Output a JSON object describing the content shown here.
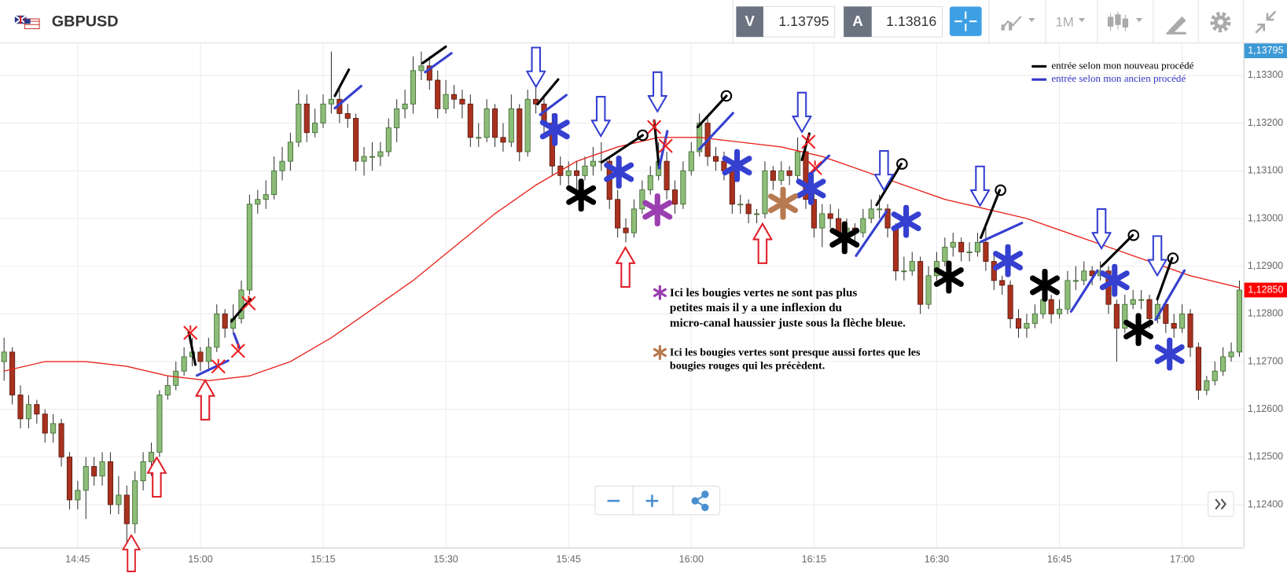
{
  "toolbar": {
    "symbol": "GBPUSD",
    "bid_label": "V",
    "bid": "1.13795",
    "ask_label": "A",
    "ask": "1.13816",
    "timeframe": "1M"
  },
  "chart_data": {
    "type": "candlestick",
    "up_color": "#8dbd78",
    "down_color": "#a8321f",
    "ohlc": [
      [
        1.127,
        1.1275,
        1.1266,
        1.1272
      ],
      [
        1.1272,
        1.1273,
        1.1261,
        1.1263
      ],
      [
        1.1263,
        1.1265,
        1.1256,
        1.1258
      ],
      [
        1.1258,
        1.1263,
        1.1256,
        1.1261
      ],
      [
        1.1261,
        1.1262,
        1.1257,
        1.1259
      ],
      [
        1.1259,
        1.126,
        1.1253,
        1.1255
      ],
      [
        1.1255,
        1.1259,
        1.1253,
        1.1257
      ],
      [
        1.1257,
        1.1258,
        1.1248,
        1.125
      ],
      [
        1.125,
        1.1251,
        1.1239,
        1.1241
      ],
      [
        1.1241,
        1.1245,
        1.1239,
        1.1243
      ],
      [
        1.1243,
        1.125,
        1.1237,
        1.1248
      ],
      [
        1.1248,
        1.125,
        1.1244,
        1.1246
      ],
      [
        1.1246,
        1.1251,
        1.1244,
        1.1249
      ],
      [
        1.1249,
        1.1251,
        1.1238,
        1.124
      ],
      [
        1.124,
        1.1246,
        1.1238,
        1.1242
      ],
      [
        1.1242,
        1.1244,
        1.1232,
        1.1236
      ],
      [
        1.1236,
        1.1247,
        1.1234,
        1.1245
      ],
      [
        1.1245,
        1.1251,
        1.1243,
        1.1249
      ],
      [
        1.1249,
        1.1253,
        1.1246,
        1.1251
      ],
      [
        1.1251,
        1.1264,
        1.125,
        1.1263
      ],
      [
        1.1263,
        1.1267,
        1.1262,
        1.1265
      ],
      [
        1.1265,
        1.127,
        1.1264,
        1.1268
      ],
      [
        1.1268,
        1.1273,
        1.1267,
        1.1271
      ],
      [
        1.1271,
        1.1275,
        1.1269,
        1.1272
      ],
      [
        1.1272,
        1.1273,
        1.1268,
        1.127
      ],
      [
        1.127,
        1.1275,
        1.1268,
        1.1273
      ],
      [
        1.1273,
        1.1282,
        1.1272,
        1.128
      ],
      [
        1.128,
        1.1281,
        1.1275,
        1.1277
      ],
      [
        1.1277,
        1.1282,
        1.1276,
        1.1279
      ],
      [
        1.1279,
        1.1287,
        1.1278,
        1.1285
      ],
      [
        1.1285,
        1.1305,
        1.1284,
        1.1303
      ],
      [
        1.1303,
        1.1306,
        1.1301,
        1.1304
      ],
      [
        1.1304,
        1.1308,
        1.1302,
        1.1305
      ],
      [
        1.1305,
        1.1313,
        1.1304,
        1.131
      ],
      [
        1.131,
        1.1315,
        1.1308,
        1.1312
      ],
      [
        1.1312,
        1.1318,
        1.131,
        1.1316
      ],
      [
        1.1316,
        1.1327,
        1.1315,
        1.1324
      ],
      [
        1.1324,
        1.1326,
        1.1316,
        1.1318
      ],
      [
        1.1318,
        1.1323,
        1.1317,
        1.132
      ],
      [
        1.132,
        1.1326,
        1.1319,
        1.1324
      ],
      [
        1.1324,
        1.1335,
        1.1322,
        1.1325
      ],
      [
        1.1325,
        1.1327,
        1.132,
        1.1322
      ],
      [
        1.1322,
        1.1324,
        1.1319,
        1.1321
      ],
      [
        1.1321,
        1.1322,
        1.131,
        1.1312
      ],
      [
        1.1312,
        1.1315,
        1.1309,
        1.1313
      ],
      [
        1.1313,
        1.1316,
        1.131,
        1.1313
      ],
      [
        1.1313,
        1.1316,
        1.1311,
        1.1314
      ],
      [
        1.1314,
        1.1321,
        1.1313,
        1.1319
      ],
      [
        1.1319,
        1.1325,
        1.1316,
        1.1323
      ],
      [
        1.1323,
        1.1327,
        1.1321,
        1.1324
      ],
      [
        1.1324,
        1.1334,
        1.1322,
        1.1331
      ],
      [
        1.1331,
        1.1335,
        1.1329,
        1.1332
      ],
      [
        1.1332,
        1.1334,
        1.1327,
        1.1329
      ],
      [
        1.1329,
        1.1331,
        1.1321,
        1.1323
      ],
      [
        1.1323,
        1.1329,
        1.1322,
        1.1326
      ],
      [
        1.1326,
        1.1328,
        1.1323,
        1.1325
      ],
      [
        1.1325,
        1.1327,
        1.1321,
        1.1324
      ],
      [
        1.1324,
        1.1326,
        1.1315,
        1.1317
      ],
      [
        1.1317,
        1.132,
        1.1315,
        1.1317
      ],
      [
        1.1317,
        1.1325,
        1.1316,
        1.1323
      ],
      [
        1.1323,
        1.1324,
        1.1315,
        1.1317
      ],
      [
        1.1317,
        1.132,
        1.1314,
        1.1316
      ],
      [
        1.1316,
        1.1326,
        1.1315,
        1.1323
      ],
      [
        1.1323,
        1.1324,
        1.1312,
        1.1314
      ],
      [
        1.1314,
        1.1327,
        1.1313,
        1.1325
      ],
      [
        1.1325,
        1.133,
        1.1322,
        1.1324
      ],
      [
        1.1324,
        1.1326,
        1.1318,
        1.132
      ],
      [
        1.132,
        1.1322,
        1.1309,
        1.1311
      ],
      [
        1.1311,
        1.1313,
        1.1307,
        1.1309
      ],
      [
        1.1309,
        1.1312,
        1.1307,
        1.131
      ],
      [
        1.131,
        1.1312,
        1.1306,
        1.1309
      ],
      [
        1.1309,
        1.1313,
        1.1308,
        1.1311
      ],
      [
        1.1311,
        1.1315,
        1.1309,
        1.1312
      ],
      [
        1.1312,
        1.1316,
        1.131,
        1.1312
      ],
      [
        1.1312,
        1.1313,
        1.1302,
        1.1304
      ],
      [
        1.1304,
        1.1306,
        1.1296,
        1.1298
      ],
      [
        1.1298,
        1.13,
        1.1295,
        1.1297
      ],
      [
        1.1297,
        1.1304,
        1.1296,
        1.1302
      ],
      [
        1.1302,
        1.1308,
        1.1301,
        1.1306
      ],
      [
        1.1306,
        1.1311,
        1.1305,
        1.1309
      ],
      [
        1.1309,
        1.1316,
        1.1308,
        1.1312
      ],
      [
        1.1312,
        1.1314,
        1.1304,
        1.1306
      ],
      [
        1.1306,
        1.1308,
        1.1301,
        1.1303
      ],
      [
        1.1303,
        1.1312,
        1.1302,
        1.131
      ],
      [
        1.131,
        1.1316,
        1.1309,
        1.1314
      ],
      [
        1.1314,
        1.1322,
        1.1313,
        1.132
      ],
      [
        1.132,
        1.1321,
        1.1311,
        1.1313
      ],
      [
        1.1313,
        1.1315,
        1.131,
        1.1312
      ],
      [
        1.1312,
        1.1314,
        1.1308,
        1.131
      ],
      [
        1.131,
        1.1311,
        1.1301,
        1.1303
      ],
      [
        1.1303,
        1.1305,
        1.1301,
        1.1303
      ],
      [
        1.1303,
        1.1304,
        1.1299,
        1.1301
      ],
      [
        1.1301,
        1.1302,
        1.1299,
        1.1301
      ],
      [
        1.1301,
        1.1312,
        1.13,
        1.131
      ],
      [
        1.131,
        1.1311,
        1.1306,
        1.1308
      ],
      [
        1.1308,
        1.1312,
        1.1307,
        1.131
      ],
      [
        1.131,
        1.1311,
        1.1307,
        1.1309
      ],
      [
        1.1309,
        1.1317,
        1.1308,
        1.1314
      ],
      [
        1.1314,
        1.1316,
        1.1302,
        1.1304
      ],
      [
        1.1304,
        1.1306,
        1.1296,
        1.1298
      ],
      [
        1.1298,
        1.1303,
        1.1294,
        1.1301
      ],
      [
        1.1301,
        1.1303,
        1.1298,
        1.13
      ],
      [
        1.13,
        1.1302,
        1.1295,
        1.1297
      ],
      [
        1.1297,
        1.13,
        1.1296,
        1.1298
      ],
      [
        1.1298,
        1.1299,
        1.1295,
        1.1297
      ],
      [
        1.1297,
        1.1302,
        1.1296,
        1.13
      ],
      [
        1.13,
        1.1304,
        1.1299,
        1.1302
      ],
      [
        1.1302,
        1.1305,
        1.13,
        1.1302
      ],
      [
        1.1302,
        1.1303,
        1.1296,
        1.1298
      ],
      [
        1.1298,
        1.1299,
        1.1287,
        1.1289
      ],
      [
        1.1289,
        1.1292,
        1.1287,
        1.1289
      ],
      [
        1.1289,
        1.1293,
        1.1288,
        1.1291
      ],
      [
        1.1291,
        1.1292,
        1.128,
        1.1282
      ],
      [
        1.1282,
        1.129,
        1.1281,
        1.1288
      ],
      [
        1.1288,
        1.1293,
        1.1287,
        1.1291
      ],
      [
        1.1291,
        1.1296,
        1.129,
        1.1294
      ],
      [
        1.1294,
        1.1297,
        1.1292,
        1.1295
      ],
      [
        1.1295,
        1.1296,
        1.1291,
        1.1293
      ],
      [
        1.1293,
        1.1295,
        1.1291,
        1.1293
      ],
      [
        1.1293,
        1.1297,
        1.1292,
        1.1295
      ],
      [
        1.1295,
        1.1298,
        1.1289,
        1.1291
      ],
      [
        1.1291,
        1.1293,
        1.1285,
        1.1287
      ],
      [
        1.1287,
        1.1288,
        1.1284,
        1.1286
      ],
      [
        1.1286,
        1.1287,
        1.1277,
        1.1279
      ],
      [
        1.1279,
        1.1281,
        1.1275,
        1.1277
      ],
      [
        1.1277,
        1.128,
        1.1275,
        1.1278
      ],
      [
        1.1278,
        1.1282,
        1.1277,
        1.128
      ],
      [
        1.128,
        1.1285,
        1.1279,
        1.1283
      ],
      [
        1.1283,
        1.1284,
        1.1278,
        1.128
      ],
      [
        1.128,
        1.1283,
        1.1279,
        1.1281
      ],
      [
        1.1281,
        1.1289,
        1.128,
        1.1287
      ],
      [
        1.1287,
        1.129,
        1.1285,
        1.1287
      ],
      [
        1.1287,
        1.1291,
        1.1286,
        1.1289
      ],
      [
        1.1289,
        1.129,
        1.1286,
        1.1288
      ],
      [
        1.1288,
        1.1291,
        1.1287,
        1.1289
      ],
      [
        1.1289,
        1.129,
        1.128,
        1.1282
      ],
      [
        1.1282,
        1.1283,
        1.127,
        1.1277
      ],
      [
        1.1277,
        1.1284,
        1.1276,
        1.1282
      ],
      [
        1.1282,
        1.1285,
        1.1281,
        1.1283
      ],
      [
        1.1283,
        1.1285,
        1.1281,
        1.1283
      ],
      [
        1.1283,
        1.1284,
        1.1277,
        1.1279
      ],
      [
        1.1279,
        1.1283,
        1.1278,
        1.1282
      ],
      [
        1.1282,
        1.1283,
        1.1276,
        1.1278
      ],
      [
        1.1278,
        1.128,
        1.1275,
        1.1277
      ],
      [
        1.1277,
        1.1282,
        1.1276,
        1.128
      ],
      [
        1.128,
        1.1281,
        1.1271,
        1.1273
      ],
      [
        1.1273,
        1.1274,
        1.1262,
        1.1264
      ],
      [
        1.1264,
        1.1267,
        1.1263,
        1.1266
      ],
      [
        1.1266,
        1.127,
        1.1265,
        1.1268
      ],
      [
        1.1268,
        1.1273,
        1.1267,
        1.1271
      ],
      [
        1.1271,
        1.1274,
        1.127,
        1.1272
      ],
      [
        1.1272,
        1.1287,
        1.1271,
        1.1285
      ]
    ],
    "moving_average": {
      "color": "#e8241c",
      "x": [
        0,
        5,
        10,
        15,
        20,
        25,
        30,
        35,
        40,
        45,
        50,
        55,
        60,
        65,
        70,
        75,
        80,
        85,
        90,
        95,
        100,
        105,
        110,
        115,
        120,
        125,
        130,
        135,
        140,
        145,
        151
      ],
      "values": [
        1.1268,
        1.127,
        1.127,
        1.1269,
        1.1267,
        1.1266,
        1.1267,
        1.127,
        1.1275,
        1.1281,
        1.1287,
        1.1294,
        1.1301,
        1.1307,
        1.1312,
        1.1315,
        1.1317,
        1.1317,
        1.1316,
        1.1315,
        1.1313,
        1.131,
        1.1307,
        1.1304,
        1.1302,
        1.13,
        1.1297,
        1.1294,
        1.1291,
        1.1288,
        1.12855
      ]
    },
    "xlim": [
      -0.5,
      151.5
    ],
    "ylim": [
      1.1231,
      1.13367
    ],
    "xticks": [
      {
        "value": 9,
        "label": "14:45"
      },
      {
        "value": 24,
        "label": "15:00"
      },
      {
        "value": 39,
        "label": "15:15"
      },
      {
        "value": 54,
        "label": "15:30"
      },
      {
        "value": 69,
        "label": "15:45"
      },
      {
        "value": 84,
        "label": "16:00"
      },
      {
        "value": 99,
        "label": "16:15"
      },
      {
        "value": 114,
        "label": "16:30"
      },
      {
        "value": 129,
        "label": "16:45"
      },
      {
        "value": 144,
        "label": "17:00"
      }
    ],
    "yticks": [
      {
        "value": 1.124,
        "label": "1,12400"
      },
      {
        "value": 1.125,
        "label": "1,12500"
      },
      {
        "value": 1.126,
        "label": "1,12600"
      },
      {
        "value": 1.127,
        "label": "1,12700"
      },
      {
        "value": 1.128,
        "label": "1,12800"
      },
      {
        "value": 1.129,
        "label": "1,12900"
      },
      {
        "value": 1.13,
        "label": "1,13000"
      },
      {
        "value": 1.131,
        "label": "1,13100"
      },
      {
        "value": 1.132,
        "label": "1,13200"
      },
      {
        "value": 1.133,
        "label": "1,13300"
      }
    ],
    "grid": true,
    "price_tags": [
      {
        "label": "1,13795",
        "color": "#3d9ad6"
      },
      {
        "value": 1.1285,
        "label": "1,12850",
        "color": "#ff0000"
      }
    ],
    "legend": [
      {
        "name": "entrée selon mon nouveau procédé",
        "color": "#000000"
      },
      {
        "name": "entrée selon mon ancien procédé",
        "color": "#3535c8"
      }
    ],
    "annotations": [
      {
        "color": "#9b3fb0",
        "lines": [
          "Ici les bougies vertes ne sont pas plus",
          "petites mais il y a une inflexion du",
          "micro-canal haussier juste sous la flèche bleue."
        ]
      },
      {
        "color": "#b87a50",
        "lines": [
          "Ici les bougies vertes sont presque aussi fortes que les",
          "bougies rouges qui les précèdent."
        ]
      }
    ]
  }
}
